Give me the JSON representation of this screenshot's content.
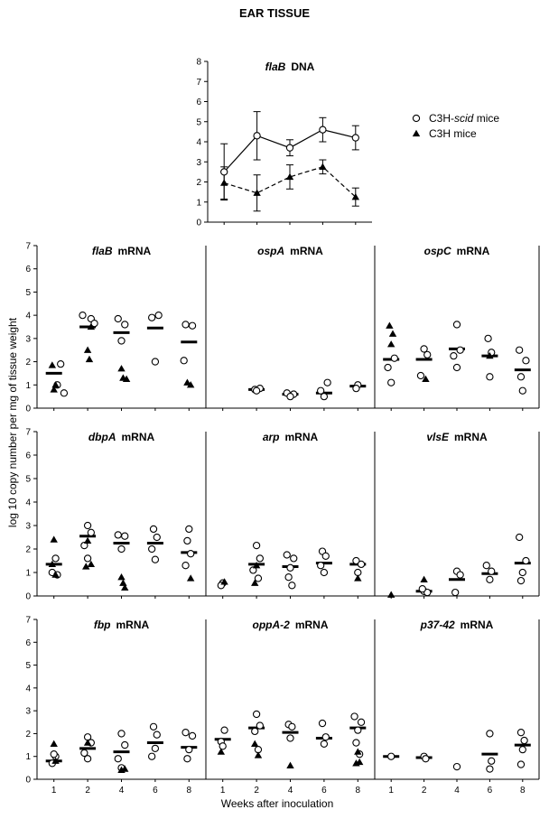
{
  "page": {
    "title": "EAR TISSUE",
    "y_axis_label": "log 10 copy number per mg of tissue weight",
    "x_axis_label": "Weeks after inoculation",
    "x_ticks": [
      "1",
      "2",
      "4",
      "6",
      "8"
    ],
    "y_ticks": [
      "0",
      "1",
      "2",
      "3",
      "4",
      "5",
      "6",
      "7"
    ]
  },
  "legend": {
    "position": "right of top panel",
    "items": [
      {
        "symbol": "open-circle",
        "label_parts": [
          "C3H-",
          "scid",
          " mice"
        ]
      },
      {
        "symbol": "filled-triangle",
        "label_parts": [
          "C3H mice",
          "",
          ""
        ]
      }
    ]
  },
  "chart_data": [
    {
      "type": "line",
      "title_parts": [
        "flaB",
        "DNA"
      ],
      "x": [
        "1",
        "2",
        "4",
        "6",
        "8"
      ],
      "ylim": [
        0,
        8
      ],
      "yticks": [
        "0",
        "1",
        "2",
        "3",
        "4",
        "5",
        "6",
        "7",
        "8"
      ],
      "series": [
        {
          "symbol": "open-circle",
          "line": "solid",
          "values": [
            2.5,
            4.3,
            3.7,
            4.6,
            4.2
          ],
          "err": [
            1.4,
            1.2,
            0.4,
            0.6,
            0.6
          ]
        },
        {
          "symbol": "filled-triangle",
          "line": "dashed",
          "values": [
            1.95,
            1.45,
            2.25,
            2.75,
            1.25
          ],
          "err": [
            0.8,
            0.9,
            0.6,
            0.35,
            0.45
          ]
        }
      ]
    },
    {
      "type": "scatter",
      "title_parts": [
        "flaB",
        "mRNA"
      ],
      "x": [
        "1",
        "2",
        "4",
        "6",
        "8"
      ],
      "ylim": [
        0,
        7
      ],
      "medians": [
        1.5,
        3.5,
        3.25,
        3.45,
        2.85
      ],
      "open": [
        [
          1.1,
          1.0
        ],
        [
          1.2,
          1.9
        ],
        [
          1.3,
          0.65
        ],
        [
          2.1,
          3.85
        ],
        [
          2.2,
          3.65
        ],
        [
          1.85,
          4.0
        ],
        [
          2.9,
          3.85
        ],
        [
          3.1,
          3.6
        ],
        [
          3.0,
          2.9
        ],
        [
          3.9,
          3.9
        ],
        [
          4.1,
          4.0
        ],
        [
          4.0,
          2.0
        ],
        [
          4.9,
          3.6
        ],
        [
          5.1,
          3.55
        ],
        [
          4.85,
          2.05
        ]
      ],
      "filled": [
        [
          0.95,
          1.85
        ],
        [
          1.05,
          1.0
        ],
        [
          1.0,
          0.8
        ],
        [
          2.0,
          2.5
        ],
        [
          2.05,
          2.1
        ],
        [
          2.1,
          3.5
        ],
        [
          3.0,
          1.7
        ],
        [
          3.05,
          1.3
        ],
        [
          3.15,
          1.25
        ],
        [
          4.95,
          1.1
        ],
        [
          5.05,
          1.0
        ]
      ]
    },
    {
      "type": "scatter",
      "title_parts": [
        "ospA",
        "mRNA"
      ],
      "x": [
        "1",
        "2",
        "4",
        "6",
        "8"
      ],
      "ylim": [
        0,
        7
      ],
      "medians": [
        0.8,
        0.6,
        0.65,
        0.95
      ],
      "median_x": [
        2,
        3,
        4,
        5
      ],
      "open": [
        [
          1.95,
          0.8
        ],
        [
          2.1,
          0.85
        ],
        [
          2.0,
          0.75
        ],
        [
          2.9,
          0.65
        ],
        [
          3.1,
          0.6
        ],
        [
          3.0,
          0.5
        ],
        [
          3.9,
          0.75
        ],
        [
          4.1,
          1.1
        ],
        [
          4.0,
          0.5
        ],
        [
          5.0,
          1.0
        ],
        [
          4.95,
          0.85
        ]
      ],
      "filled": []
    },
    {
      "type": "scatter",
      "title_parts": [
        "ospC",
        "mRNA"
      ],
      "x": [
        "1",
        "2",
        "4",
        "6",
        "8"
      ],
      "ylim": [
        0,
        7
      ],
      "medians": [
        2.1,
        2.1,
        2.55,
        2.25,
        1.65
      ],
      "open": [
        [
          1.1,
          2.15
        ],
        [
          0.9,
          1.75
        ],
        [
          1.0,
          1.1
        ],
        [
          2.0,
          2.55
        ],
        [
          2.1,
          2.3
        ],
        [
          1.9,
          1.4
        ],
        [
          3.0,
          3.6
        ],
        [
          3.1,
          2.5
        ],
        [
          2.9,
          2.25
        ],
        [
          3.0,
          1.75
        ],
        [
          3.95,
          3.0
        ],
        [
          4.05,
          2.4
        ],
        [
          4.0,
          1.35
        ],
        [
          4.9,
          2.5
        ],
        [
          5.1,
          2.05
        ],
        [
          5.0,
          0.75
        ],
        [
          4.95,
          1.35
        ]
      ],
      "filled": [
        [
          0.95,
          3.55
        ],
        [
          1.05,
          3.2
        ],
        [
          1.0,
          2.75
        ],
        [
          2.05,
          1.25
        ],
        [
          4.0,
          2.25
        ]
      ]
    },
    {
      "type": "scatter",
      "title_parts": [
        "dbpA",
        "mRNA"
      ],
      "x": [
        "1",
        "2",
        "4",
        "6",
        "8"
      ],
      "ylim": [
        0,
        7
      ],
      "medians": [
        1.35,
        2.55,
        2.25,
        2.25,
        1.85
      ],
      "open": [
        [
          1.05,
          1.6
        ],
        [
          0.95,
          1.0
        ],
        [
          1.1,
          0.9
        ],
        [
          2.0,
          3.0
        ],
        [
          2.1,
          2.7
        ],
        [
          1.9,
          2.15
        ],
        [
          2.0,
          1.6
        ],
        [
          2.9,
          2.6
        ],
        [
          3.1,
          2.55
        ],
        [
          3.0,
          2.0
        ],
        [
          3.95,
          2.85
        ],
        [
          4.05,
          2.5
        ],
        [
          3.9,
          2.0
        ],
        [
          4.0,
          1.55
        ],
        [
          5.0,
          2.85
        ],
        [
          4.95,
          2.35
        ],
        [
          5.05,
          1.8
        ],
        [
          4.9,
          1.3
        ]
      ],
      "filled": [
        [
          1.0,
          2.4
        ],
        [
          0.95,
          1.35
        ],
        [
          1.05,
          0.9
        ],
        [
          2.0,
          2.35
        ],
        [
          1.95,
          1.25
        ],
        [
          2.1,
          1.35
        ],
        [
          3.0,
          0.8
        ],
        [
          3.05,
          0.55
        ],
        [
          3.1,
          0.35
        ],
        [
          5.05,
          0.75
        ]
      ]
    },
    {
      "type": "scatter",
      "title_parts": [
        "arp",
        "mRNA"
      ],
      "x": [
        "1",
        "2",
        "4",
        "6",
        "8"
      ],
      "ylim": [
        0,
        7
      ],
      "medians": [
        1.35,
        1.25,
        1.4,
        1.35
      ],
      "median_x": [
        2,
        3,
        4,
        5
      ],
      "open": [
        [
          1.0,
          0.55
        ],
        [
          0.95,
          0.45
        ],
        [
          2.0,
          2.15
        ],
        [
          2.1,
          1.6
        ],
        [
          1.9,
          1.1
        ],
        [
          2.05,
          0.75
        ],
        [
          2.9,
          1.75
        ],
        [
          3.1,
          1.6
        ],
        [
          3.0,
          1.2
        ],
        [
          2.95,
          0.8
        ],
        [
          3.05,
          0.45
        ],
        [
          3.95,
          1.9
        ],
        [
          4.05,
          1.7
        ],
        [
          4.0,
          1.0
        ],
        [
          3.9,
          1.3
        ],
        [
          4.95,
          1.5
        ],
        [
          5.1,
          1.35
        ],
        [
          5.0,
          1.0
        ]
      ],
      "filled": [
        [
          1.05,
          0.6
        ],
        [
          2.0,
          1.3
        ],
        [
          1.95,
          0.55
        ],
        [
          5.0,
          0.75
        ]
      ]
    },
    {
      "type": "scatter",
      "title_parts": [
        "vlsE",
        "mRNA"
      ],
      "x": [
        "1",
        "2",
        "4",
        "6",
        "8"
      ],
      "ylim": [
        0,
        7
      ],
      "medians": [
        0.2,
        0.7,
        0.95,
        1.4
      ],
      "median_x": [
        2,
        3,
        4,
        5
      ],
      "open": [
        [
          2.0,
          0.2
        ],
        [
          2.1,
          0.15
        ],
        [
          1.95,
          0.3
        ],
        [
          3.0,
          1.05
        ],
        [
          3.1,
          0.9
        ],
        [
          2.95,
          0.15
        ],
        [
          3.9,
          1.3
        ],
        [
          4.05,
          1.05
        ],
        [
          4.0,
          0.7
        ],
        [
          4.9,
          2.5
        ],
        [
          5.1,
          1.5
        ],
        [
          5.0,
          1.0
        ],
        [
          4.95,
          0.65
        ]
      ],
      "filled": [
        [
          1.0,
          0.05
        ],
        [
          2.0,
          0.7
        ]
      ]
    },
    {
      "type": "scatter",
      "title_parts": [
        "fbp",
        "mRNA"
      ],
      "x": [
        "1",
        "2",
        "4",
        "6",
        "8"
      ],
      "ylim": [
        0,
        7
      ],
      "medians": [
        0.8,
        1.35,
        1.2,
        1.6,
        1.4
      ],
      "open": [
        [
          1.05,
          1.0
        ],
        [
          0.95,
          0.7
        ],
        [
          1.0,
          1.1
        ],
        [
          2.0,
          1.85
        ],
        [
          2.1,
          1.6
        ],
        [
          1.9,
          1.15
        ],
        [
          2.0,
          0.9
        ],
        [
          3.0,
          2.0
        ],
        [
          3.1,
          1.5
        ],
        [
          2.9,
          0.9
        ],
        [
          3.0,
          0.5
        ],
        [
          3.95,
          2.3
        ],
        [
          4.05,
          1.95
        ],
        [
          4.0,
          1.35
        ],
        [
          3.9,
          1.0
        ],
        [
          4.9,
          2.05
        ],
        [
          5.1,
          1.9
        ],
        [
          5.0,
          1.3
        ],
        [
          4.95,
          0.9
        ]
      ],
      "filled": [
        [
          1.0,
          1.55
        ],
        [
          1.05,
          0.8
        ],
        [
          2.0,
          1.6
        ],
        [
          3.0,
          0.4
        ],
        [
          3.1,
          0.45
        ]
      ]
    },
    {
      "type": "scatter",
      "title_parts": [
        "oppA-2",
        "mRNA"
      ],
      "x": [
        "1",
        "2",
        "4",
        "6",
        "8"
      ],
      "ylim": [
        0,
        7
      ],
      "medians": [
        1.75,
        2.25,
        2.05,
        1.8,
        2.25
      ],
      "open": [
        [
          1.05,
          2.15
        ],
        [
          0.95,
          1.65
        ],
        [
          1.0,
          1.45
        ],
        [
          2.0,
          2.85
        ],
        [
          2.1,
          2.35
        ],
        [
          1.95,
          2.1
        ],
        [
          2.05,
          1.3
        ],
        [
          2.95,
          2.4
        ],
        [
          3.05,
          2.3
        ],
        [
          3.0,
          1.8
        ],
        [
          3.95,
          2.45
        ],
        [
          4.05,
          1.85
        ],
        [
          4.0,
          1.55
        ],
        [
          4.9,
          2.75
        ],
        [
          5.1,
          2.5
        ],
        [
          5.0,
          2.15
        ],
        [
          4.95,
          1.6
        ],
        [
          5.05,
          1.1
        ]
      ],
      "filled": [
        [
          0.95,
          1.2
        ],
        [
          1.95,
          1.55
        ],
        [
          2.05,
          1.05
        ],
        [
          3.0,
          0.6
        ],
        [
          4.95,
          0.7
        ],
        [
          5.05,
          0.75
        ],
        [
          5.0,
          1.2
        ]
      ]
    },
    {
      "type": "scatter",
      "title_parts": [
        "p37-42",
        "mRNA"
      ],
      "x": [
        "1",
        "2",
        "4",
        "6",
        "8"
      ],
      "ylim": [
        0,
        7
      ],
      "medians": [
        1.0,
        0.95,
        1.1,
        1.5
      ],
      "median_x": [
        1,
        2,
        4,
        5
      ],
      "open": [
        [
          1.0,
          1.0
        ],
        [
          2.0,
          1.0
        ],
        [
          2.05,
          0.9
        ],
        [
          3.0,
          0.55
        ],
        [
          4.0,
          2.0
        ],
        [
          4.05,
          0.8
        ],
        [
          4.0,
          0.45
        ],
        [
          4.95,
          2.05
        ],
        [
          5.05,
          1.7
        ],
        [
          5.0,
          1.3
        ],
        [
          4.95,
          0.65
        ]
      ],
      "filled": []
    }
  ]
}
